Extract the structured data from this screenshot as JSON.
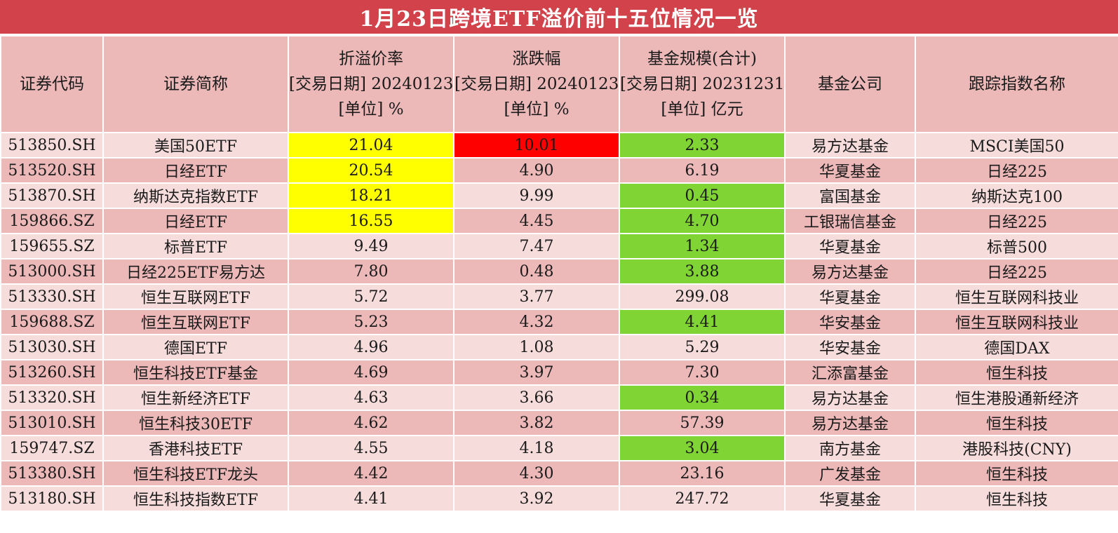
{
  "title": "1月23日跨境ETF溢价前十五位情况一览",
  "colors": {
    "title_bg": "#d1424a",
    "header_bg": "#ecb8b8",
    "row_light": "#f7dcdc",
    "row_dark": "#ecb8b8",
    "highlight_yellow": "#ffff00",
    "highlight_red": "#ff0000",
    "highlight_green": "#80d433"
  },
  "headers": [
    [
      "证券代码"
    ],
    [
      "证券简称"
    ],
    [
      "折溢价率",
      "[交易日期] 20240123",
      "[单位] %"
    ],
    [
      "涨跌幅",
      "[交易日期] 20240123",
      "[单位] %"
    ],
    [
      "基金规模(合计)",
      "[交易日期] 20231231",
      "[单位] 亿元"
    ],
    [
      "基金公司"
    ],
    [
      "跟踪指数名称"
    ]
  ],
  "rows": [
    {
      "code": "513850.SH",
      "name": "美国50ETF",
      "premium": "21.04",
      "change": "10.01",
      "size": "2.33",
      "company": "易方达基金",
      "index": "MSCI美国50",
      "hl": [
        "yellow",
        "red",
        "green"
      ]
    },
    {
      "code": "513520.SH",
      "name": "日经ETF",
      "premium": "20.54",
      "change": "4.90",
      "size": "6.19",
      "company": "华夏基金",
      "index": "日经225",
      "hl": [
        "yellow",
        "",
        ""
      ]
    },
    {
      "code": "513870.SH",
      "name": "纳斯达克指数ETF",
      "premium": "18.21",
      "change": "9.99",
      "size": "0.45",
      "company": "富国基金",
      "index": "纳斯达克100",
      "hl": [
        "yellow",
        "",
        "green"
      ]
    },
    {
      "code": "159866.SZ",
      "name": "日经ETF",
      "premium": "16.55",
      "change": "4.45",
      "size": "4.70",
      "company": "工银瑞信基金",
      "index": "日经225",
      "hl": [
        "yellow",
        "",
        "green"
      ]
    },
    {
      "code": "159655.SZ",
      "name": "标普ETF",
      "premium": "9.49",
      "change": "7.47",
      "size": "1.34",
      "company": "华夏基金",
      "index": "标普500",
      "hl": [
        "",
        "",
        "green"
      ]
    },
    {
      "code": "513000.SH",
      "name": "日经225ETF易方达",
      "premium": "7.80",
      "change": "0.48",
      "size": "3.88",
      "company": "易方达基金",
      "index": "日经225",
      "hl": [
        "",
        "",
        "green"
      ]
    },
    {
      "code": "513330.SH",
      "name": "恒生互联网ETF",
      "premium": "5.72",
      "change": "3.77",
      "size": "299.08",
      "company": "华夏基金",
      "index": "恒生互联网科技业",
      "hl": [
        "",
        "",
        ""
      ]
    },
    {
      "code": "159688.SZ",
      "name": "恒生互联网ETF",
      "premium": "5.23",
      "change": "4.32",
      "size": "4.41",
      "company": "华安基金",
      "index": "恒生互联网科技业",
      "hl": [
        "",
        "",
        "green"
      ]
    },
    {
      "code": "513030.SH",
      "name": "德国ETF",
      "premium": "4.96",
      "change": "1.08",
      "size": "5.29",
      "company": "华安基金",
      "index": "德国DAX",
      "hl": [
        "",
        "",
        ""
      ]
    },
    {
      "code": "513260.SH",
      "name": "恒生科技ETF基金",
      "premium": "4.69",
      "change": "3.97",
      "size": "7.30",
      "company": "汇添富基金",
      "index": "恒生科技",
      "hl": [
        "",
        "",
        ""
      ]
    },
    {
      "code": "513320.SH",
      "name": "恒生新经济ETF",
      "premium": "4.63",
      "change": "3.66",
      "size": "0.34",
      "company": "易方达基金",
      "index": "恒生港股通新经济",
      "hl": [
        "",
        "",
        "green"
      ]
    },
    {
      "code": "513010.SH",
      "name": "恒生科技30ETF",
      "premium": "4.62",
      "change": "3.82",
      "size": "57.39",
      "company": "易方达基金",
      "index": "恒生科技",
      "hl": [
        "",
        "",
        ""
      ]
    },
    {
      "code": "159747.SZ",
      "name": "香港科技ETF",
      "premium": "4.55",
      "change": "4.18",
      "size": "3.04",
      "company": "南方基金",
      "index": "港股科技(CNY)",
      "hl": [
        "",
        "",
        "green"
      ]
    },
    {
      "code": "513380.SH",
      "name": "恒生科技ETF龙头",
      "premium": "4.42",
      "change": "4.30",
      "size": "23.16",
      "company": "广发基金",
      "index": "恒生科技",
      "hl": [
        "",
        "",
        ""
      ]
    },
    {
      "code": "513180.SH",
      "name": "恒生科技指数ETF",
      "premium": "4.41",
      "change": "3.92",
      "size": "247.72",
      "company": "华夏基金",
      "index": "恒生科技",
      "hl": [
        "",
        "",
        ""
      ]
    }
  ]
}
